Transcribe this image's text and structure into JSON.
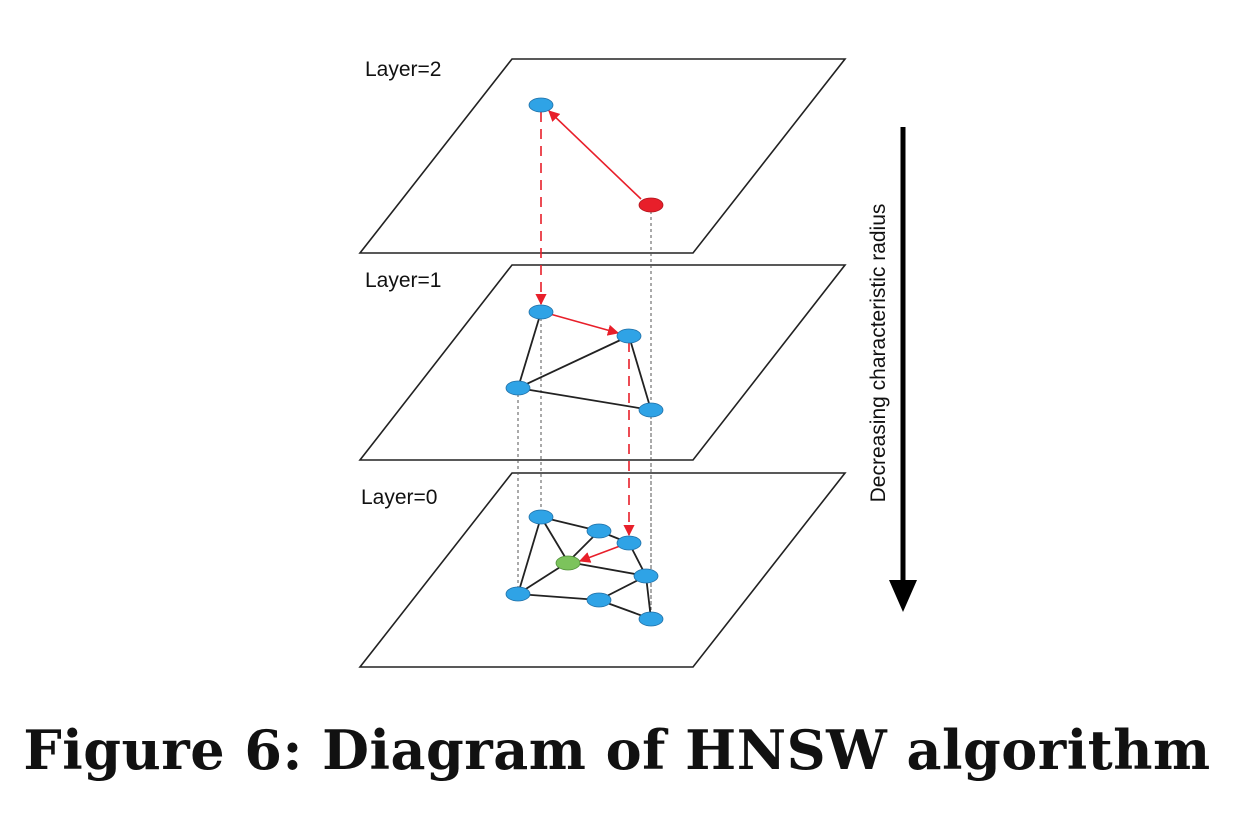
{
  "layers": [
    {
      "label": "Layer=2"
    },
    {
      "label": "Layer=1"
    },
    {
      "label": "Layer=0"
    }
  ],
  "axis": {
    "label": "Decreasing characteristic radius"
  },
  "caption": "Figure 6: Diagram of HNSW algorithm",
  "colors": {
    "node": "#2fa3e6",
    "entry_point": "#e81f2a",
    "target": "#7cc35c",
    "search_path": "#e81f2a",
    "edge": "#222222"
  }
}
